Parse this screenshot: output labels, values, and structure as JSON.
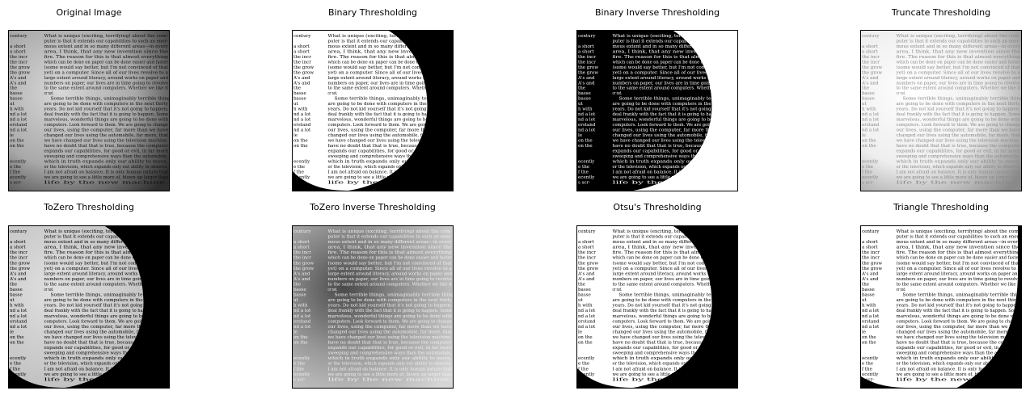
{
  "figure": {
    "panels": [
      {
        "title": "Original Image"
      },
      {
        "title": "Binary Thresholding"
      },
      {
        "title": "Binary Inverse Thresholding"
      },
      {
        "title": "Truncate Thresholding"
      },
      {
        "title": "ToZero Thresholding"
      },
      {
        "title": "ToZero Inverse Thresholding"
      },
      {
        "title": "Otsu's Thresholding"
      },
      {
        "title": "Triangle Thresholding"
      }
    ]
  },
  "page_text": [
    "What is unique (exciting, terrifying) about the com-",
    "puter is that it extends our capabilities to such an enor-",
    "mous extent and in so many different areas—in every",
    "area, I think, that any new invention since the",
    "fire. The reason for this is that almost everything",
    "which can be done on paper can be done easier and faster",
    "(some would say better, but I'm not convinced of that",
    "yet) on a computer. Since all of our lives revolve to a",
    "large extent around literacy, around works on paper and",
    "numbers on paper, our lives are in time going to revolve",
    "to the same extent around computers. Whether we like it",
    "or not.",
    "Some terrible things, unimaginably terrible things,",
    "are going to be done with computers in the next thirty",
    "years. Do not kid yourself that it's not going to happen;",
    "deal frankly with the fact that it is going to happen. Some",
    "marvelous, wonderful things are going to be done with",
    "computers. Look forward to them. We are going to change",
    "our lives, using the computer, far more than we have",
    "changed our lives using the automobile, far more, that",
    "we have changed our lives using the television machine.",
    "have no doubt that that is true, because the computer",
    "expands our capabilities, for good or evil, in far more",
    "sweeping and comprehensive ways than the automobile,",
    "which in truth expands only our ability to move,",
    "or the television, which expands only our ability to observe.",
    "I am not afraid on balance. It is only human nature that",
    "we are going to see a little more of, blown up larger than",
    "life by the new machine."
  ],
  "margin_text": [
    "century",
    "",
    "a short",
    "a short",
    "the incr",
    "the incr",
    "the grow",
    "the grow",
    "A's and",
    "A's and",
    "the",
    "basse",
    "basse",
    "ut",
    "h with",
    "nd a lot",
    "nd a lot",
    "erstand",
    "nd a lot",
    "le",
    "on the",
    "on the",
    "",
    "",
    "ecently",
    "e the",
    "f the",
    "ecently",
    "s scr-"
  ]
}
